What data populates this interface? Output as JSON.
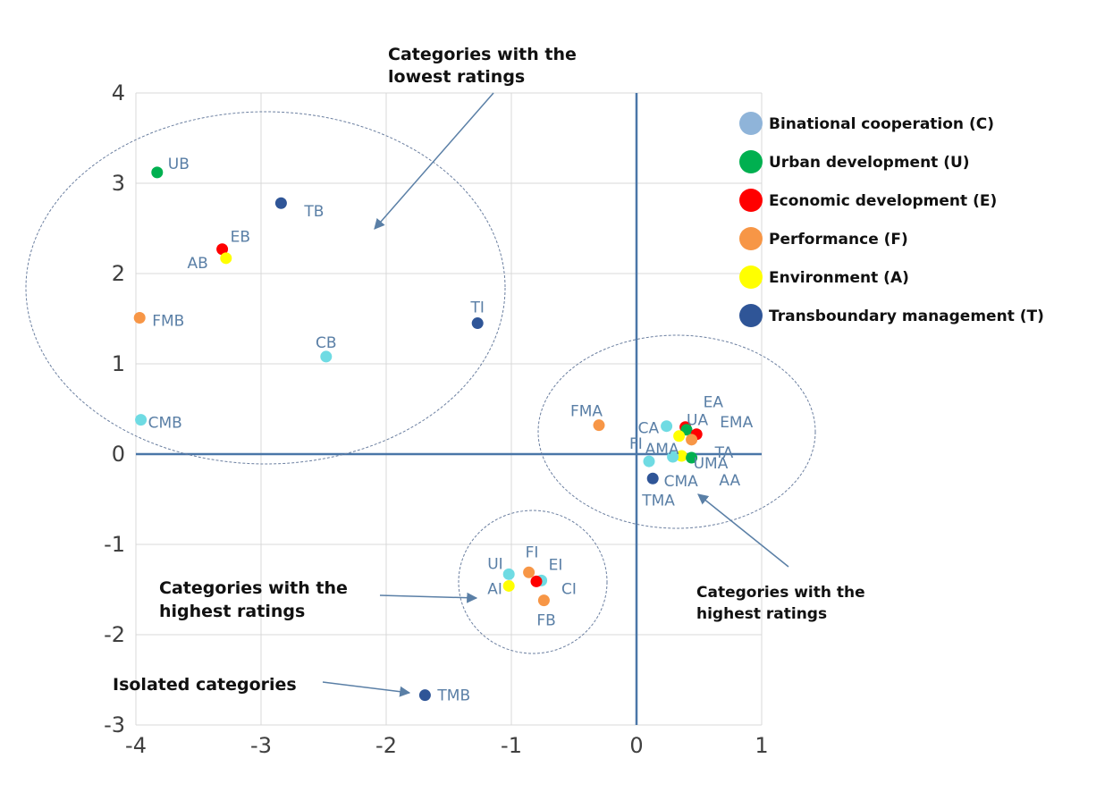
{
  "chart_data": {
    "type": "scatter",
    "title": "",
    "xlabel": "",
    "ylabel": "",
    "xlim": [
      -4,
      1
    ],
    "ylim": [
      -3,
      4
    ],
    "grid": true,
    "legend_position": "top-right",
    "x_ticks": [
      -4,
      -3,
      -2,
      -1,
      0,
      1
    ],
    "y_ticks": [
      -3,
      -2,
      -1,
      0,
      1,
      2,
      3,
      4
    ],
    "x_tick_labels": [
      "-4",
      "-3",
      "-2",
      "-1",
      "0",
      "1"
    ],
    "y_tick_labels": [
      "-3",
      "-2",
      "-1",
      "0",
      "1",
      "2",
      "3",
      "4"
    ],
    "series": [
      {
        "name": "Binational cooperation (C)",
        "color": "#8fb4d9",
        "marker_color": "#6fdbe3"
      },
      {
        "name": "Urban development (U)",
        "color": "#00b050",
        "marker_color": "#00b050"
      },
      {
        "name": "Economic development (E)",
        "color": "#ff0000",
        "marker_color": "#ff0000"
      },
      {
        "name": "Performance (F)",
        "color": "#f79646",
        "marker_color": "#f79646"
      },
      {
        "name": "Environment (A)",
        "color": "#ffff00",
        "marker_color": "#ffff00"
      },
      {
        "name": "Transboundary management (T)",
        "color": "#2f5597",
        "marker_color": "#2f5597"
      }
    ],
    "points": [
      {
        "label": "UB",
        "x": -3.83,
        "y": 3.12,
        "series": 1
      },
      {
        "label": "TB",
        "x": -2.84,
        "y": 2.78,
        "series": 5
      },
      {
        "label": "EB",
        "x": -3.31,
        "y": 2.27,
        "series": 2
      },
      {
        "label": "AB",
        "x": -3.28,
        "y": 2.17,
        "series": 4
      },
      {
        "label": "FMB",
        "x": -3.97,
        "y": 1.51,
        "series": 3
      },
      {
        "label": "TI",
        "x": -1.27,
        "y": 1.45,
        "series": 5
      },
      {
        "label": "CB",
        "x": -2.48,
        "y": 1.08,
        "series": 0
      },
      {
        "label": "CMB",
        "x": -3.96,
        "y": 0.38,
        "series": 0
      },
      {
        "label": "FMA",
        "x": -0.3,
        "y": 0.32,
        "series": 3
      },
      {
        "label": "CA",
        "x": 0.24,
        "y": 0.31,
        "series": 0
      },
      {
        "label": "EA",
        "x": 0.39,
        "y": 0.3,
        "series": 2
      },
      {
        "label": "UA",
        "x": 0.4,
        "y": 0.27,
        "series": 1
      },
      {
        "label": "EMA",
        "x": 0.48,
        "y": 0.22,
        "series": 2
      },
      {
        "label": "AMA",
        "x": 0.34,
        "y": 0.2,
        "series": 4
      },
      {
        "label": "TA",
        "x": 0.44,
        "y": 0.16,
        "series": 3
      },
      {
        "label": "AA",
        "x": 0.36,
        "y": -0.02,
        "series": 4
      },
      {
        "label": "CMA",
        "x": 0.29,
        "y": -0.03,
        "series": 0
      },
      {
        "label": "UMA",
        "x": 0.44,
        "y": -0.04,
        "series": 1
      },
      {
        "label": "FI",
        "x": 0.1,
        "y": -0.08,
        "series": 0
      },
      {
        "label": "TMA",
        "x": 0.13,
        "y": -0.27,
        "series": 5
      },
      {
        "label": "UI",
        "x": -1.02,
        "y": -1.33,
        "series": 0
      },
      {
        "label": "FI",
        "x": -0.86,
        "y": -1.31,
        "series": 3
      },
      {
        "label": "EI",
        "x": -0.76,
        "y": -1.4,
        "series": 0
      },
      {
        "label": "CI",
        "x": -0.8,
        "y": -1.41,
        "series": 2
      },
      {
        "label": "AI",
        "x": -1.02,
        "y": -1.46,
        "series": 4
      },
      {
        "label": "FB",
        "x": -0.74,
        "y": -1.62,
        "series": 3
      },
      {
        "label": "TMB",
        "x": -1.69,
        "y": -2.67,
        "series": 5
      }
    ],
    "annotations": [
      {
        "text_lines": [
          "Categories with the",
          "lowest ratings"
        ]
      },
      {
        "text_lines": [
          "Categories with the",
          "highest ratings"
        ]
      },
      {
        "text_lines": [
          "Categories with the",
          "highest ratings"
        ]
      },
      {
        "text_lines": [
          "Isolated categories"
        ]
      }
    ]
  }
}
